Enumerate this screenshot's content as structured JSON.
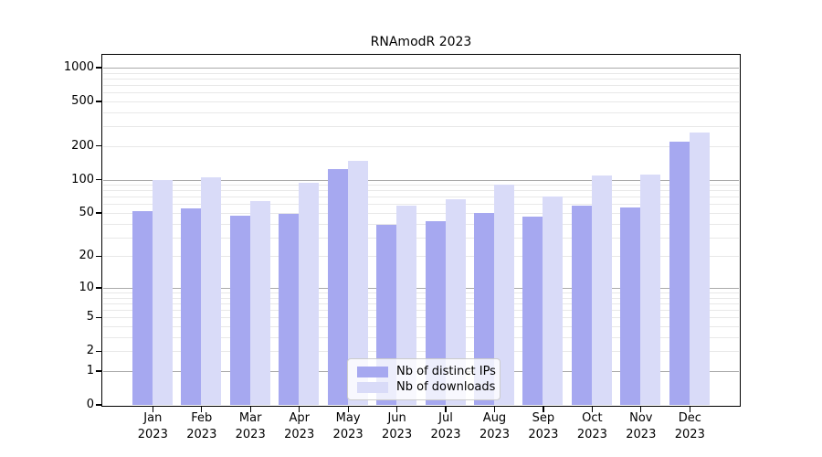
{
  "chart_data": {
    "type": "bar",
    "title": "RNAmodR 2023",
    "categories": [
      "Jan",
      "Feb",
      "Mar",
      "Apr",
      "May",
      "Jun",
      "Jul",
      "Aug",
      "Sep",
      "Oct",
      "Nov",
      "Dec"
    ],
    "category_year": "2023",
    "series": [
      {
        "name": "Nb of distinct IPs",
        "color": "#a6a8f0",
        "values": [
          52,
          55,
          47,
          49,
          124,
          39,
          42,
          50,
          46,
          58,
          56,
          220
        ]
      },
      {
        "name": "Nb of downloads",
        "color": "#d9dbf8",
        "values": [
          100,
          105,
          64,
          94,
          147,
          58,
          66,
          90,
          70,
          108,
          110,
          264
        ]
      }
    ],
    "xlabel": "",
    "ylabel": "",
    "y_axis": {
      "scale": "log10(1+y)",
      "ticks": [
        0,
        1,
        2,
        5,
        10,
        20,
        50,
        100,
        200,
        500,
        1000
      ],
      "major_gridlines": [
        1,
        10,
        100,
        1000
      ],
      "minor_gridline_decades": [
        1,
        10,
        100
      ],
      "ylim": [
        0,
        1300
      ]
    },
    "grid": true,
    "legend_position": "lower-center-inside"
  },
  "colors": {
    "bar_distinct_ips": "#a6a8f0",
    "bar_downloads": "#d9dbf8",
    "grid_major": "#aaaaaa",
    "grid_minor": "#e8e8e8",
    "axis": "#000000",
    "background": "#ffffff"
  }
}
